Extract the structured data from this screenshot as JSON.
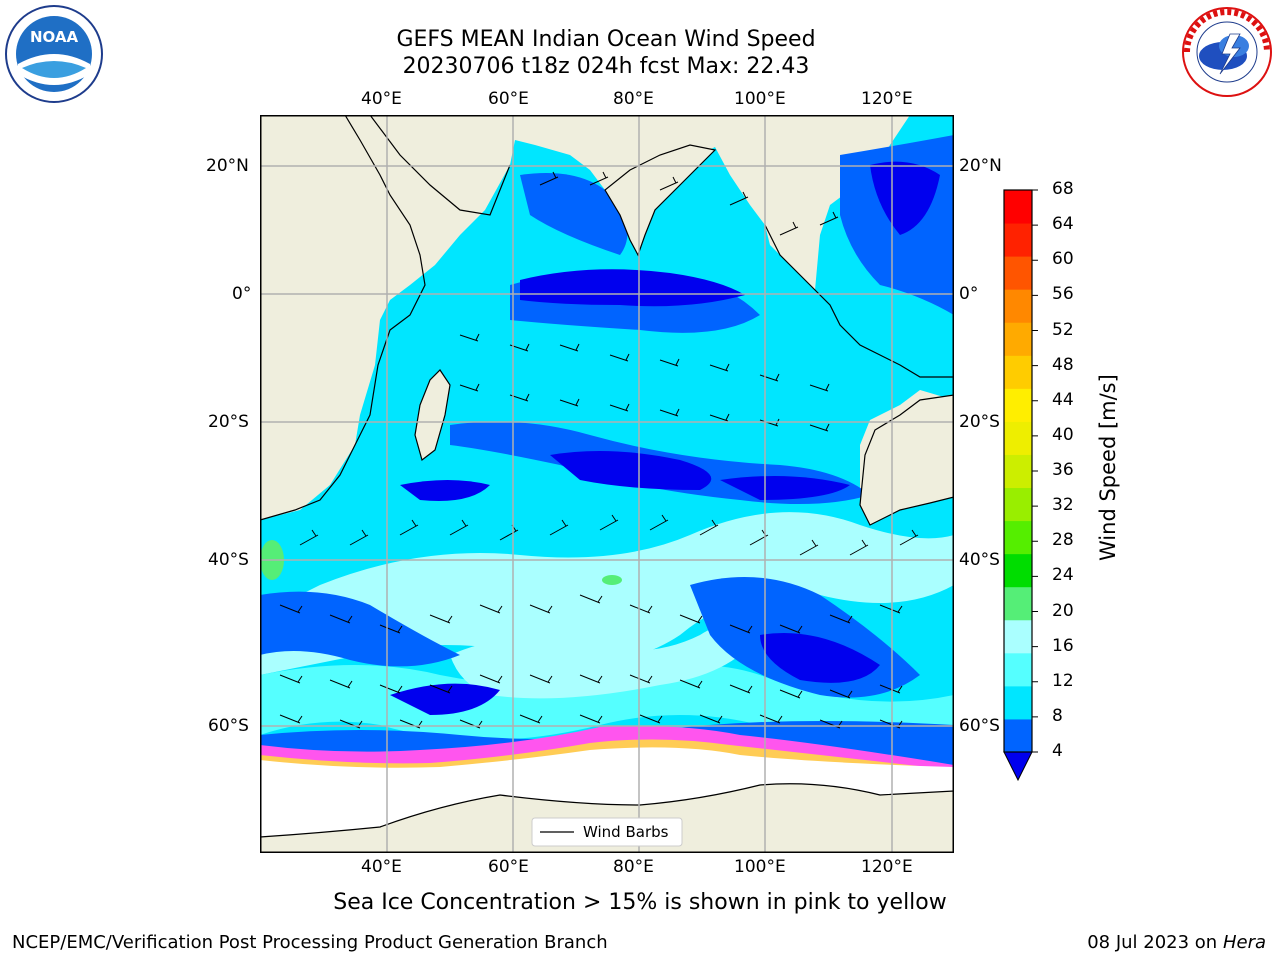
{
  "title": {
    "line1": "GEFS MEAN Indian Ocean Wind Speed",
    "line2": "20230706 t18z 024h fcst   Max: 22.43"
  },
  "map": {
    "lon_ticks": [
      "40°E",
      "60°E",
      "80°E",
      "100°E",
      "120°E"
    ],
    "lat_ticks_left": [
      "20°N",
      "0°",
      "20°S",
      "40°S",
      "60°S"
    ],
    "lat_ticks_right": [
      "20°N",
      "0°",
      "20°S",
      "40°S",
      "60°S"
    ],
    "legend_label": "Wind Barbs",
    "colors": {
      "land": "#efeedd",
      "grid": "#b0b0b0",
      "ice_pink": "#ff55ee",
      "ice_yellow": "#ffcc55"
    }
  },
  "colorbar": {
    "label": "Wind Speed [m/s]",
    "ticks": [
      "68",
      "64",
      "60",
      "56",
      "52",
      "48",
      "44",
      "40",
      "36",
      "32",
      "28",
      "24",
      "20",
      "16",
      "12",
      "8",
      "4"
    ],
    "colors": [
      "#0000ee",
      "#0064ff",
      "#00e6ff",
      "#55ffff",
      "#aaffff",
      "#55ee77",
      "#00dd00",
      "#55ee00",
      "#99ee00",
      "#ccee00",
      "#eeee00",
      "#ffee00",
      "#ffcc00",
      "#ffaa00",
      "#ff8800",
      "#ff5500",
      "#ff2200",
      "#ff0000"
    ]
  },
  "caption": "Sea Ice Concentration > 15% is shown in pink to yellow",
  "footer": {
    "left": "NCEP/EMC/Verification Post Processing Product Generation Branch",
    "date": "08 Jul 2023 on ",
    "machine": "Hera"
  },
  "logos": {
    "noaa_text": "NOAA",
    "nws_ring_text": "NATIONAL WEATHER SERVICE"
  }
}
